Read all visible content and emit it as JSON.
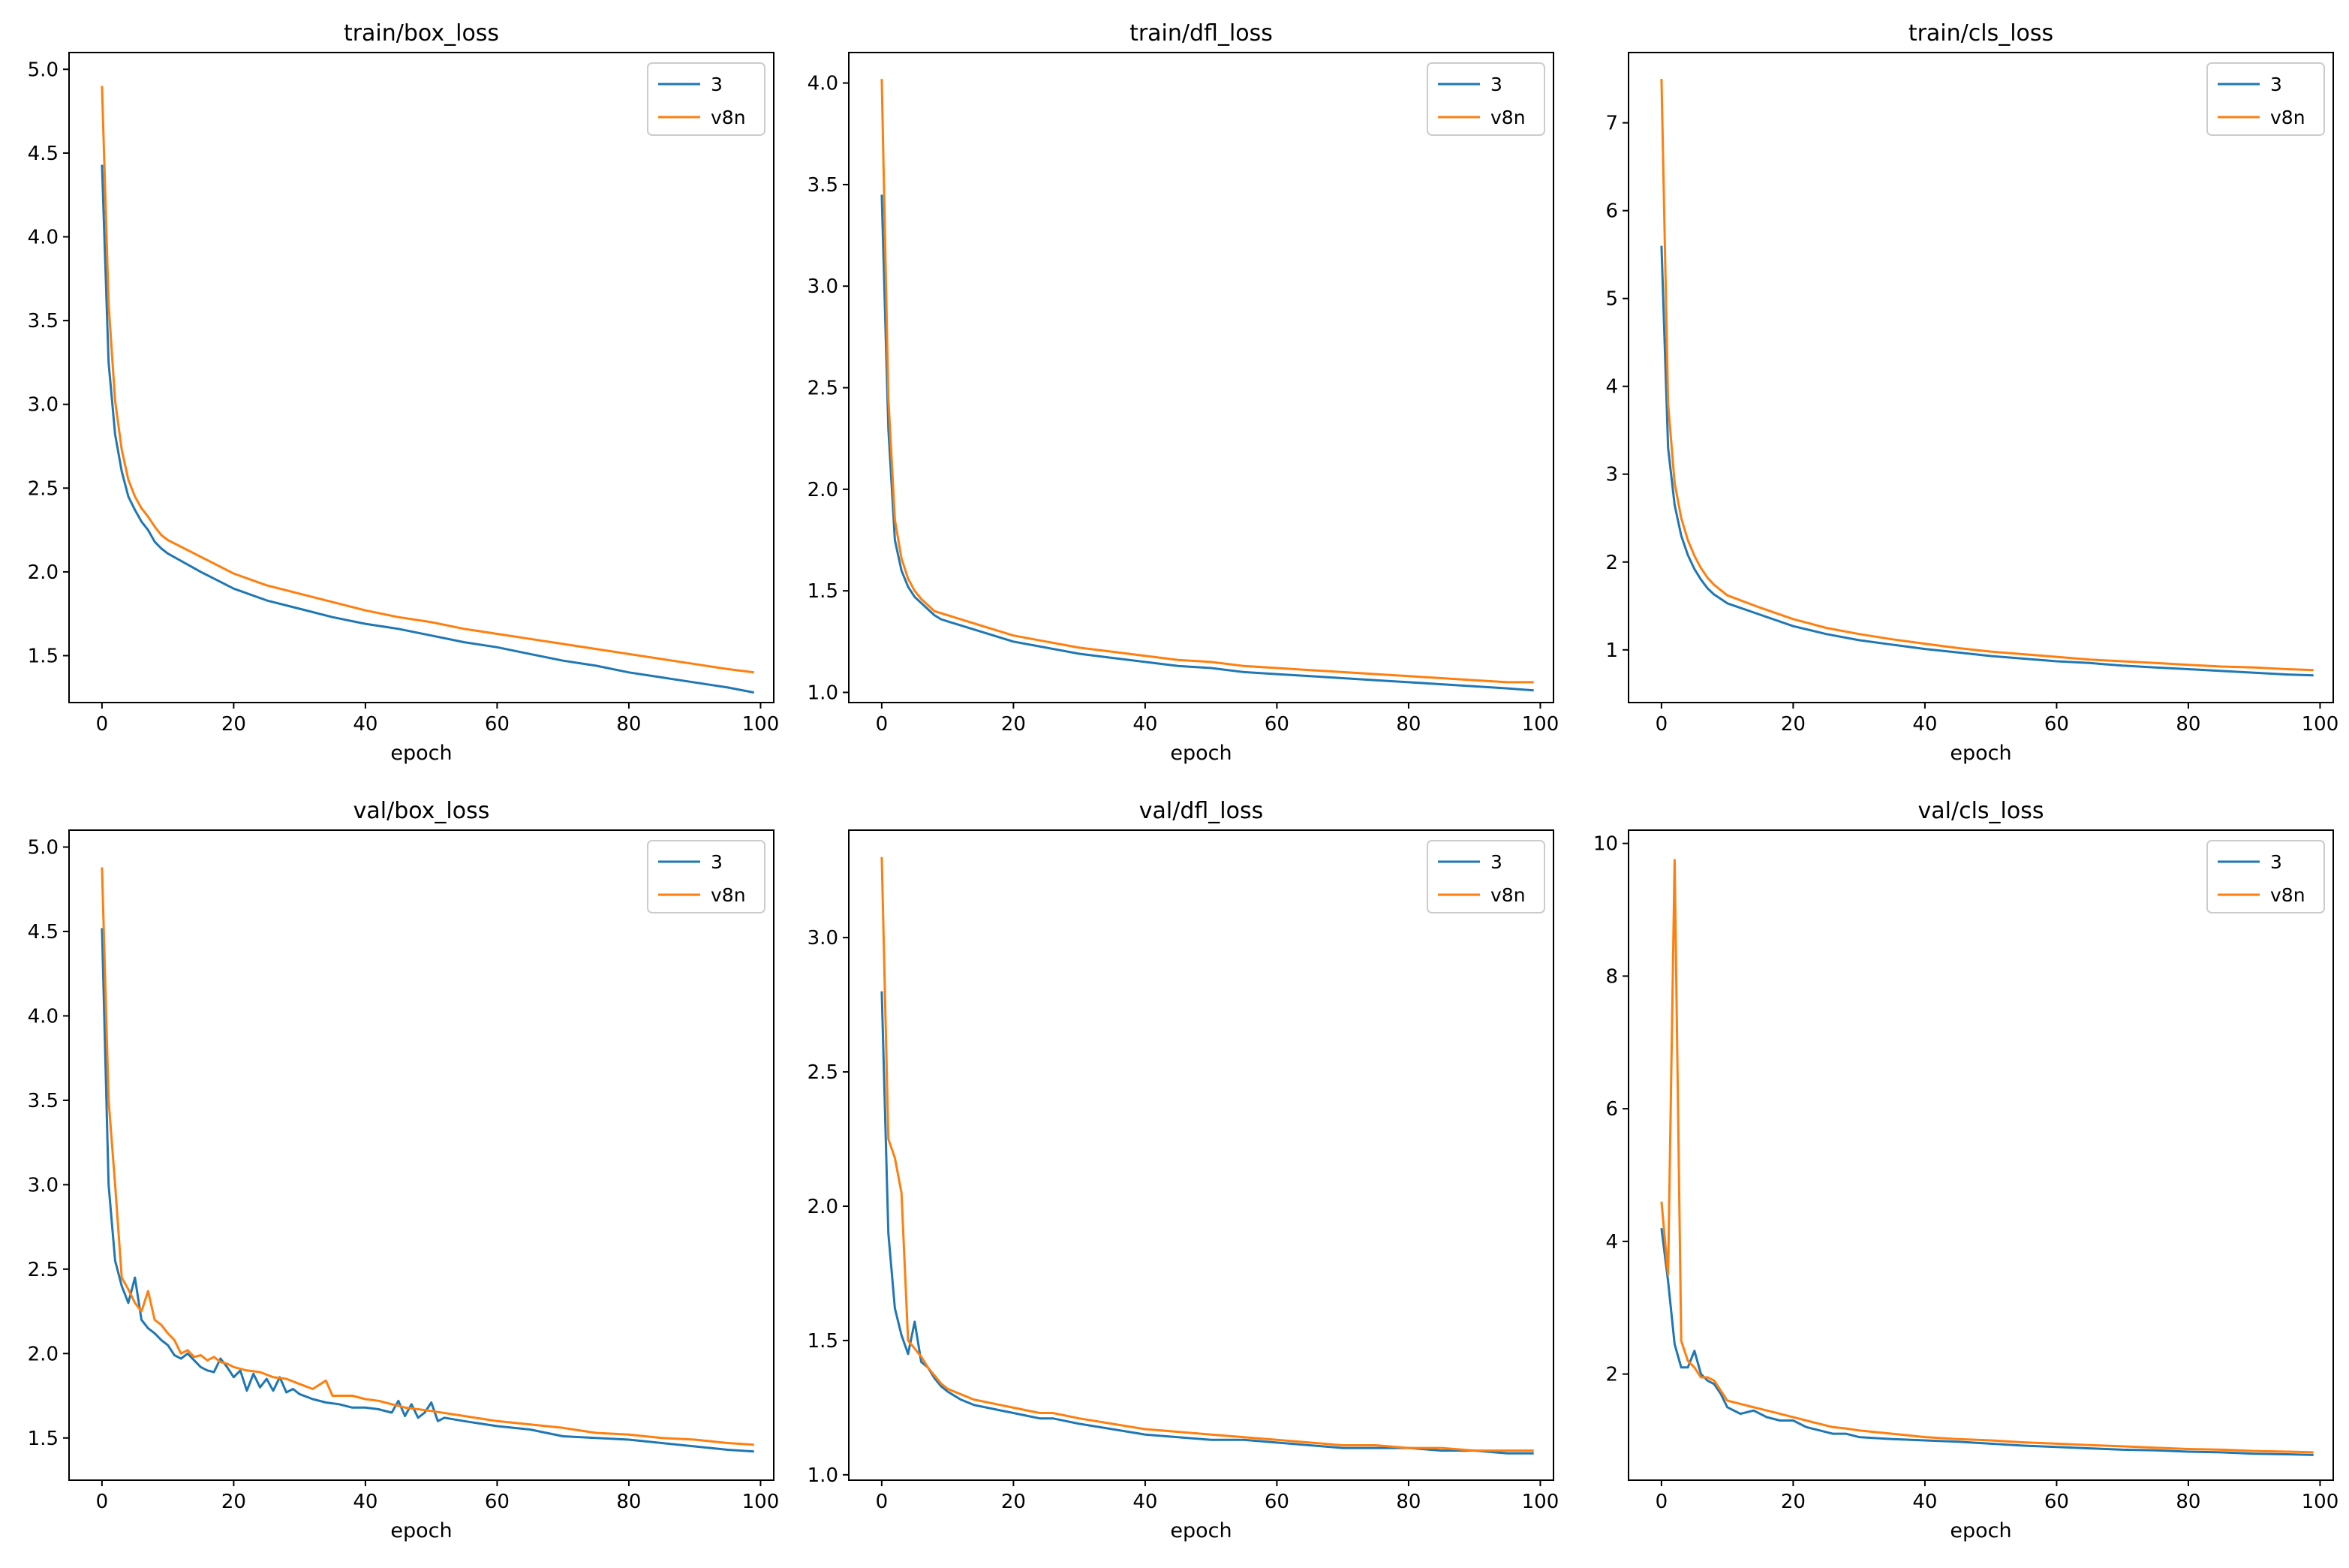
{
  "x_label": "epoch",
  "legend": [
    "3",
    "v8n"
  ],
  "colors": {
    "series_3": "#1f77b4",
    "series_v8n": "#ff7f0e"
  },
  "chart_data": [
    {
      "type": "line",
      "title": "train/box_loss",
      "xlabel": "epoch",
      "xlim": [
        -5,
        102
      ],
      "ylim": [
        1.22,
        5.1
      ],
      "xticks": [
        0,
        20,
        40,
        60,
        80,
        100
      ],
      "yticks": [
        1.5,
        2.0,
        2.5,
        3.0,
        3.5,
        4.0,
        4.5,
        5.0
      ],
      "ytick_labels": [
        "1.5",
        "2.0",
        "2.5",
        "3.0",
        "3.5",
        "4.0",
        "4.5",
        "5.0"
      ],
      "legend_position": "top-right",
      "series": [
        {
          "name": "3",
          "x": [
            0,
            1,
            2,
            3,
            4,
            5,
            6,
            7,
            8,
            9,
            10,
            15,
            20,
            25,
            30,
            35,
            40,
            45,
            50,
            55,
            60,
            65,
            70,
            75,
            80,
            85,
            90,
            95,
            99
          ],
          "y": [
            4.43,
            3.25,
            2.82,
            2.6,
            2.45,
            2.37,
            2.3,
            2.25,
            2.18,
            2.14,
            2.11,
            2.0,
            1.9,
            1.83,
            1.78,
            1.73,
            1.69,
            1.66,
            1.62,
            1.58,
            1.55,
            1.51,
            1.47,
            1.44,
            1.4,
            1.37,
            1.34,
            1.31,
            1.28
          ]
        },
        {
          "name": "v8n",
          "x": [
            0,
            1,
            2,
            3,
            4,
            5,
            6,
            7,
            8,
            9,
            10,
            15,
            20,
            25,
            30,
            35,
            40,
            45,
            50,
            55,
            60,
            65,
            70,
            75,
            80,
            85,
            90,
            95,
            99
          ],
          "y": [
            4.9,
            3.6,
            3.02,
            2.73,
            2.55,
            2.45,
            2.38,
            2.33,
            2.27,
            2.22,
            2.19,
            2.09,
            1.99,
            1.92,
            1.87,
            1.82,
            1.77,
            1.73,
            1.7,
            1.66,
            1.63,
            1.6,
            1.57,
            1.54,
            1.51,
            1.48,
            1.45,
            1.42,
            1.4
          ]
        }
      ]
    },
    {
      "type": "line",
      "title": "train/dfl_loss",
      "xlabel": "epoch",
      "xlim": [
        -5,
        102
      ],
      "ylim": [
        0.95,
        4.15
      ],
      "xticks": [
        0,
        20,
        40,
        60,
        80,
        100
      ],
      "yticks": [
        1.0,
        1.5,
        2.0,
        2.5,
        3.0,
        3.5,
        4.0
      ],
      "ytick_labels": [
        "1.0",
        "1.5",
        "2.0",
        "2.5",
        "3.0",
        "3.5",
        "4.0"
      ],
      "legend_position": "top-right",
      "series": [
        {
          "name": "3",
          "x": [
            0,
            1,
            2,
            3,
            4,
            5,
            6,
            7,
            8,
            9,
            10,
            15,
            20,
            25,
            30,
            35,
            40,
            45,
            50,
            55,
            60,
            65,
            70,
            75,
            80,
            85,
            90,
            95,
            99
          ],
          "y": [
            3.45,
            2.3,
            1.75,
            1.6,
            1.52,
            1.47,
            1.44,
            1.41,
            1.38,
            1.36,
            1.35,
            1.3,
            1.25,
            1.22,
            1.19,
            1.17,
            1.15,
            1.13,
            1.12,
            1.1,
            1.09,
            1.08,
            1.07,
            1.06,
            1.05,
            1.04,
            1.03,
            1.02,
            1.01
          ]
        },
        {
          "name": "v8n",
          "x": [
            0,
            1,
            2,
            3,
            4,
            5,
            6,
            7,
            8,
            9,
            10,
            15,
            20,
            25,
            30,
            35,
            40,
            45,
            50,
            55,
            60,
            65,
            70,
            75,
            80,
            85,
            90,
            95,
            99
          ],
          "y": [
            4.02,
            2.45,
            1.85,
            1.66,
            1.56,
            1.5,
            1.46,
            1.43,
            1.4,
            1.39,
            1.38,
            1.33,
            1.28,
            1.25,
            1.22,
            1.2,
            1.18,
            1.16,
            1.15,
            1.13,
            1.12,
            1.11,
            1.1,
            1.09,
            1.08,
            1.07,
            1.06,
            1.05,
            1.05
          ]
        }
      ]
    },
    {
      "type": "line",
      "title": "train/cls_loss",
      "xlabel": "epoch",
      "xlim": [
        -5,
        102
      ],
      "ylim": [
        0.4,
        7.8
      ],
      "xticks": [
        0,
        20,
        40,
        60,
        80,
        100
      ],
      "yticks": [
        1,
        2,
        3,
        4,
        5,
        6,
        7
      ],
      "ytick_labels": [
        "1",
        "2",
        "3",
        "4",
        "5",
        "6",
        "7"
      ],
      "legend_position": "top-right",
      "series": [
        {
          "name": "3",
          "x": [
            0,
            1,
            2,
            3,
            4,
            5,
            6,
            7,
            8,
            9,
            10,
            15,
            20,
            25,
            30,
            35,
            40,
            45,
            50,
            55,
            60,
            65,
            70,
            75,
            80,
            85,
            90,
            95,
            99
          ],
          "y": [
            5.6,
            3.3,
            2.65,
            2.3,
            2.08,
            1.92,
            1.8,
            1.7,
            1.63,
            1.58,
            1.53,
            1.4,
            1.27,
            1.18,
            1.11,
            1.06,
            1.01,
            0.97,
            0.93,
            0.9,
            0.87,
            0.85,
            0.82,
            0.8,
            0.78,
            0.76,
            0.74,
            0.72,
            0.71
          ]
        },
        {
          "name": "v8n",
          "x": [
            0,
            1,
            2,
            3,
            4,
            5,
            6,
            7,
            8,
            9,
            10,
            15,
            20,
            25,
            30,
            35,
            40,
            45,
            50,
            55,
            60,
            65,
            70,
            75,
            80,
            85,
            90,
            95,
            99
          ],
          "y": [
            7.5,
            3.8,
            2.9,
            2.5,
            2.25,
            2.07,
            1.93,
            1.82,
            1.74,
            1.68,
            1.62,
            1.48,
            1.35,
            1.25,
            1.18,
            1.12,
            1.07,
            1.02,
            0.98,
            0.95,
            0.92,
            0.89,
            0.87,
            0.85,
            0.83,
            0.81,
            0.8,
            0.78,
            0.77
          ]
        }
      ]
    },
    {
      "type": "line",
      "title": "val/box_loss",
      "xlabel": "epoch",
      "xlim": [
        -5,
        102
      ],
      "ylim": [
        1.25,
        5.1
      ],
      "xticks": [
        0,
        20,
        40,
        60,
        80,
        100
      ],
      "yticks": [
        1.5,
        2.0,
        2.5,
        3.0,
        3.5,
        4.0,
        4.5,
        5.0
      ],
      "ytick_labels": [
        "1.5",
        "2.0",
        "2.5",
        "3.0",
        "3.5",
        "4.0",
        "4.5",
        "5.0"
      ],
      "legend_position": "top-right",
      "series": [
        {
          "name": "3",
          "x": [
            0,
            1,
            2,
            3,
            4,
            5,
            6,
            7,
            8,
            9,
            10,
            11,
            12,
            13,
            14,
            15,
            16,
            17,
            18,
            19,
            20,
            21,
            22,
            23,
            24,
            25,
            26,
            27,
            28,
            29,
            30,
            32,
            34,
            36,
            38,
            40,
            42,
            44,
            45,
            46,
            47,
            48,
            49,
            50,
            51,
            52,
            55,
            60,
            65,
            70,
            75,
            80,
            85,
            90,
            95,
            99
          ],
          "y": [
            4.52,
            3.0,
            2.55,
            2.4,
            2.3,
            2.45,
            2.2,
            2.15,
            2.12,
            2.08,
            2.05,
            1.99,
            1.97,
            2.0,
            1.96,
            1.92,
            1.9,
            1.89,
            1.97,
            1.92,
            1.86,
            1.9,
            1.78,
            1.88,
            1.8,
            1.85,
            1.78,
            1.86,
            1.77,
            1.79,
            1.76,
            1.73,
            1.71,
            1.7,
            1.68,
            1.68,
            1.67,
            1.65,
            1.72,
            1.63,
            1.7,
            1.62,
            1.65,
            1.71,
            1.6,
            1.62,
            1.6,
            1.57,
            1.55,
            1.51,
            1.5,
            1.49,
            1.47,
            1.45,
            1.43,
            1.42
          ]
        },
        {
          "name": "v8n",
          "x": [
            0,
            1,
            2,
            3,
            4,
            5,
            6,
            7,
            8,
            9,
            10,
            11,
            12,
            13,
            14,
            15,
            16,
            17,
            18,
            19,
            20,
            22,
            24,
            26,
            28,
            30,
            32,
            34,
            35,
            36,
            38,
            40,
            42,
            44,
            46,
            48,
            50,
            55,
            60,
            65,
            70,
            75,
            80,
            85,
            90,
            95,
            99
          ],
          "y": [
            4.88,
            3.5,
            3.0,
            2.45,
            2.38,
            2.3,
            2.25,
            2.37,
            2.2,
            2.17,
            2.12,
            2.08,
            2.0,
            2.02,
            1.98,
            1.99,
            1.96,
            1.98,
            1.95,
            1.94,
            1.92,
            1.9,
            1.89,
            1.86,
            1.85,
            1.82,
            1.79,
            1.84,
            1.75,
            1.75,
            1.75,
            1.73,
            1.72,
            1.7,
            1.68,
            1.67,
            1.66,
            1.63,
            1.6,
            1.58,
            1.56,
            1.53,
            1.52,
            1.5,
            1.49,
            1.47,
            1.46
          ]
        }
      ]
    },
    {
      "type": "line",
      "title": "val/dfl_loss",
      "xlabel": "epoch",
      "xlim": [
        -5,
        102
      ],
      "ylim": [
        0.98,
        3.4
      ],
      "xticks": [
        0,
        20,
        40,
        60,
        80,
        100
      ],
      "yticks": [
        1.0,
        1.5,
        2.0,
        2.5,
        3.0
      ],
      "ytick_labels": [
        "1.0",
        "1.5",
        "2.0",
        "2.5",
        "3.0"
      ],
      "legend_position": "top-right",
      "series": [
        {
          "name": "3",
          "x": [
            0,
            1,
            2,
            3,
            4,
            5,
            6,
            7,
            8,
            9,
            10,
            12,
            14,
            16,
            18,
            20,
            22,
            24,
            26,
            28,
            30,
            35,
            40,
            45,
            50,
            55,
            60,
            65,
            70,
            75,
            80,
            85,
            90,
            95,
            99
          ],
          "y": [
            2.8,
            1.9,
            1.62,
            1.52,
            1.45,
            1.57,
            1.42,
            1.4,
            1.36,
            1.33,
            1.31,
            1.28,
            1.26,
            1.25,
            1.24,
            1.23,
            1.22,
            1.21,
            1.21,
            1.2,
            1.19,
            1.17,
            1.15,
            1.14,
            1.13,
            1.13,
            1.12,
            1.11,
            1.1,
            1.1,
            1.1,
            1.09,
            1.09,
            1.08,
            1.08
          ]
        },
        {
          "name": "v8n",
          "x": [
            0,
            1,
            2,
            3,
            4,
            5,
            6,
            7,
            8,
            9,
            10,
            12,
            14,
            16,
            18,
            20,
            22,
            24,
            26,
            28,
            30,
            35,
            40,
            45,
            50,
            55,
            60,
            65,
            70,
            75,
            80,
            85,
            90,
            95,
            99
          ],
          "y": [
            3.3,
            2.25,
            2.18,
            2.05,
            1.5,
            1.47,
            1.44,
            1.4,
            1.37,
            1.34,
            1.32,
            1.3,
            1.28,
            1.27,
            1.26,
            1.25,
            1.24,
            1.23,
            1.23,
            1.22,
            1.21,
            1.19,
            1.17,
            1.16,
            1.15,
            1.14,
            1.13,
            1.12,
            1.11,
            1.11,
            1.1,
            1.1,
            1.09,
            1.09,
            1.09
          ]
        }
      ]
    },
    {
      "type": "line",
      "title": "val/cls_loss",
      "xlabel": "epoch",
      "xlim": [
        -5,
        102
      ],
      "ylim": [
        0.4,
        10.2
      ],
      "xticks": [
        0,
        20,
        40,
        60,
        80,
        100
      ],
      "yticks": [
        2,
        4,
        6,
        8,
        10
      ],
      "ytick_labels": [
        "2",
        "4",
        "6",
        "8",
        "10"
      ],
      "legend_position": "top-right",
      "series": [
        {
          "name": "3",
          "x": [
            0,
            1,
            2,
            3,
            4,
            5,
            6,
            7,
            8,
            9,
            10,
            12,
            14,
            16,
            18,
            20,
            22,
            24,
            26,
            28,
            30,
            35,
            40,
            45,
            50,
            55,
            60,
            65,
            70,
            75,
            80,
            85,
            90,
            95,
            99
          ],
          "y": [
            4.2,
            3.4,
            2.45,
            2.1,
            2.1,
            2.35,
            2.0,
            1.9,
            1.85,
            1.7,
            1.5,
            1.4,
            1.45,
            1.35,
            1.3,
            1.3,
            1.2,
            1.15,
            1.1,
            1.1,
            1.05,
            1.02,
            1.0,
            0.98,
            0.95,
            0.92,
            0.9,
            0.88,
            0.86,
            0.85,
            0.83,
            0.82,
            0.8,
            0.79,
            0.78
          ]
        },
        {
          "name": "v8n",
          "x": [
            0,
            1,
            2,
            3,
            4,
            5,
            6,
            7,
            8,
            9,
            10,
            12,
            14,
            16,
            18,
            20,
            22,
            24,
            26,
            28,
            30,
            35,
            40,
            45,
            50,
            55,
            60,
            65,
            70,
            75,
            80,
            85,
            90,
            95,
            99
          ],
          "y": [
            4.6,
            3.5,
            9.75,
            2.5,
            2.2,
            2.1,
            1.95,
            1.95,
            1.9,
            1.75,
            1.6,
            1.55,
            1.5,
            1.45,
            1.4,
            1.35,
            1.3,
            1.25,
            1.2,
            1.18,
            1.15,
            1.1,
            1.05,
            1.02,
            1.0,
            0.97,
            0.95,
            0.93,
            0.91,
            0.89,
            0.87,
            0.86,
            0.84,
            0.83,
            0.82
          ]
        }
      ]
    }
  ]
}
